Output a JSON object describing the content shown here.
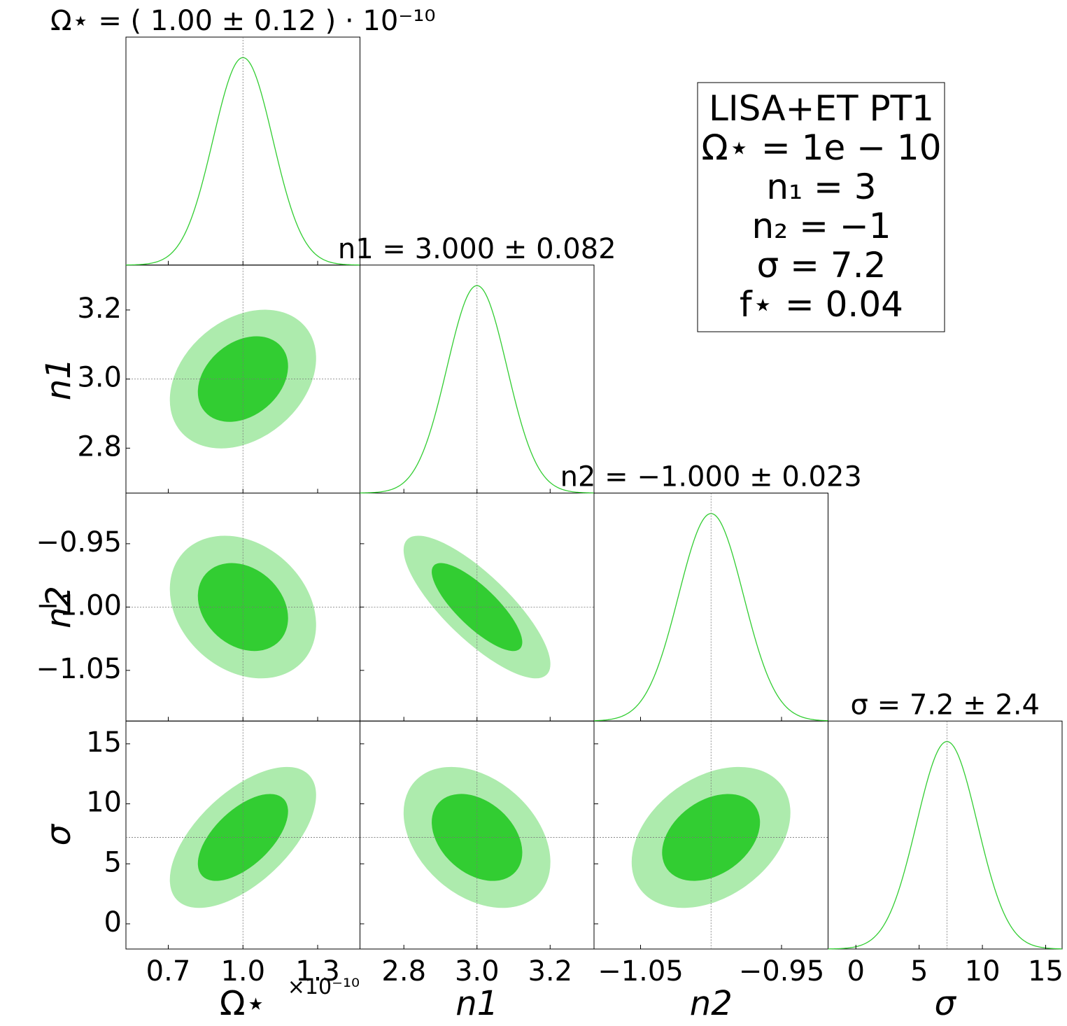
{
  "chart_data": {
    "type": "corner",
    "color": "#32cd32",
    "contour_colors": [
      "#32cd32",
      "#adebad"
    ],
    "contour_levels": [
      0.68,
      0.95
    ],
    "parameters": [
      {
        "label": "Ω⋆",
        "title": "Ω⋆ = ( 1.00 ± 0.12 ) · 10⁻¹⁰",
        "mean": 1.0,
        "sigma": 0.12,
        "xlim": [
          0.53,
          1.47
        ],
        "xticks": [
          0.7,
          {
            "value": 1,
            "label": "1.0"
          },
          1.3
        ],
        "offset_label": "×10⁻¹⁰"
      },
      {
        "label": "n1",
        "title": "n1 = 3.000 ± 0.082",
        "mean": 3.0,
        "sigma": 0.082,
        "xlim": [
          2.68,
          3.32
        ],
        "ylim": [
          2.67,
          3.33
        ],
        "xticks": [
          2.8,
          {
            "value": 3,
            "label": "3.0"
          },
          3.2
        ],
        "yticks": [
          2.8,
          {
            "value": 3,
            "label": "3.0"
          },
          3.2
        ]
      },
      {
        "label": "n2",
        "title": "n2 = −1.000 ± 0.023",
        "mean": -1.0,
        "sigma": 0.023,
        "xlim": [
          -1.083,
          -0.917
        ],
        "ylim": [
          -1.09,
          -0.91
        ],
        "xticks": [
          {
            "value": -1.05,
            "label": "−1.05"
          },
          {
            "value": -0.95,
            "label": "−0.95"
          }
        ],
        "yticks": [
          {
            "value": -1.05,
            "label": "−1.05"
          },
          {
            "value": -1,
            "label": "−1.00"
          },
          {
            "value": -0.95,
            "label": "−0.95"
          }
        ]
      },
      {
        "label": "σ",
        "title": "σ = 7.2 ± 2.4",
        "mean": 7.2,
        "sigma": 2.4,
        "xlim": [
          -2.2,
          16.3
        ],
        "ylim": [
          -2.1,
          16.9
        ],
        "xticks": [
          0,
          5,
          10,
          15
        ],
        "yticks": [
          0,
          5,
          10,
          15
        ]
      }
    ],
    "correlation": [
      [
        1,
        0.3,
        -0.25,
        0.6
      ],
      [
        0.3,
        1,
        -0.8,
        -0.35
      ],
      [
        -0.25,
        -0.8,
        1,
        0.35
      ],
      [
        0.6,
        -0.35,
        0.35,
        1
      ]
    ],
    "legend_lines": [
      "LISA+ET PT1",
      "Ω⋆ = 1e − 10",
      "n₁ = 3",
      "n₂ = −1",
      "σ = 7.2",
      "f⋆ = 0.04"
    ]
  }
}
